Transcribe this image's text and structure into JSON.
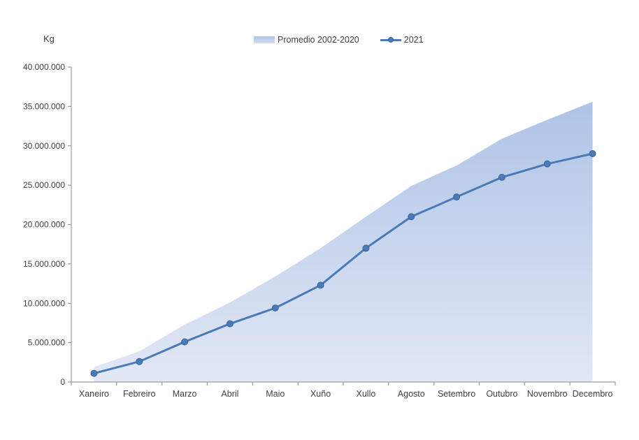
{
  "chart_data": {
    "type": "area",
    "subtype": "cumulative area + line combo",
    "unit_label": "Kg",
    "categories": [
      "Xaneiro",
      "Febreiro",
      "Marzo",
      "Abril",
      "Maio",
      "Xuño",
      "Xullo",
      "Agosto",
      "Setembro",
      "Outubro",
      "Novembro",
      "Decembro"
    ],
    "series": [
      {
        "name": "Promedio 2002-2020",
        "type": "area",
        "color_top": "#aec3e6",
        "color_bottom": "#e2e8f5",
        "values": [
          1900000,
          3900000,
          7300000,
          10100000,
          13400000,
          17000000,
          21000000,
          24900000,
          27500000,
          30900000,
          33300000,
          35600000
        ]
      },
      {
        "name": "2021",
        "type": "line",
        "color": "#4a7ab8",
        "marker": "circle",
        "values": [
          1100000,
          2600000,
          5100000,
          7400000,
          9400000,
          12300000,
          17000000,
          21000000,
          23500000,
          26000000,
          27700000,
          29000000
        ]
      }
    ],
    "ylim": [
      0,
      40000000
    ],
    "y_tick_step": 5000000,
    "y_tick_labels": [
      "0",
      "5.000.000",
      "10.000.000",
      "15.000.000",
      "20.000.000",
      "25.000.000",
      "30.000.000",
      "35.000.000",
      "40.000.000"
    ],
    "grid": false,
    "axis_color": "#9b9b9b",
    "text_color": "#404040",
    "legend_position": "top-center"
  }
}
